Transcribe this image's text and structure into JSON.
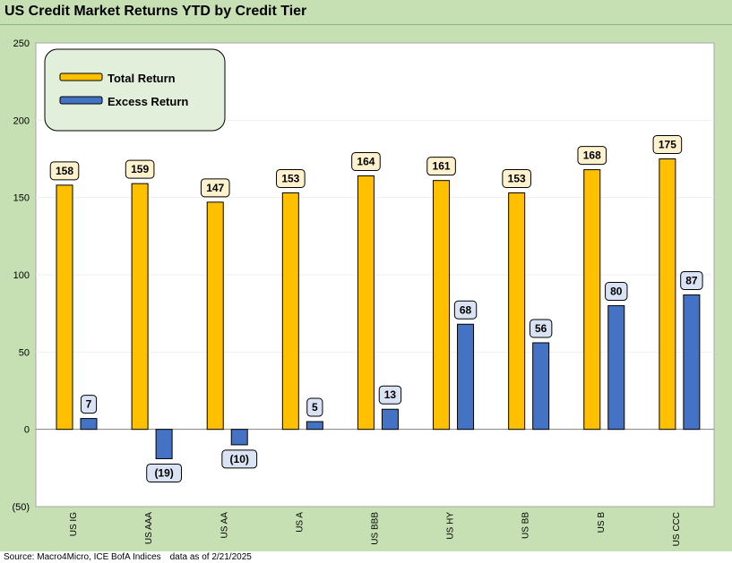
{
  "title": "US Credit Market Returns YTD by Credit Tier",
  "footer": {
    "source": "Source: Macro4Micro, ICE BofA Indices",
    "date_note": "data as of 2/21/2025"
  },
  "colors": {
    "total_return": "#ffc000",
    "excess_return": "#4472c4",
    "background": "#c6e0b4",
    "plot": "#ffffff"
  },
  "chart_data": {
    "type": "bar",
    "title": "US Credit Market Returns YTD by Credit Tier",
    "categories": [
      "US IG",
      "US AAA",
      "US AA",
      "US A",
      "US BBB",
      "US HY",
      "US BB",
      "US B",
      "US CCC"
    ],
    "series": [
      {
        "name": "Total Return",
        "values": [
          158,
          159,
          147,
          153,
          164,
          161,
          153,
          168,
          175
        ],
        "labels": [
          "158",
          "159",
          "147",
          "153",
          "164",
          "161",
          "153",
          "168",
          "175"
        ]
      },
      {
        "name": "Excess Return",
        "values": [
          7,
          -19,
          -10,
          5,
          13,
          68,
          56,
          80,
          87
        ],
        "labels": [
          "7",
          "(19)",
          "(10)",
          "5",
          "13",
          "68",
          "56",
          "80",
          "87"
        ]
      }
    ],
    "ylim": [
      -50,
      250
    ],
    "yticks": [
      250,
      200,
      150,
      100,
      50,
      0,
      -50
    ],
    "ytick_labels": [
      "250",
      "200",
      "150",
      "100",
      "50",
      "0",
      "(50)"
    ],
    "xlabel": "",
    "ylabel": "",
    "legend": "top-left",
    "grid": true
  }
}
